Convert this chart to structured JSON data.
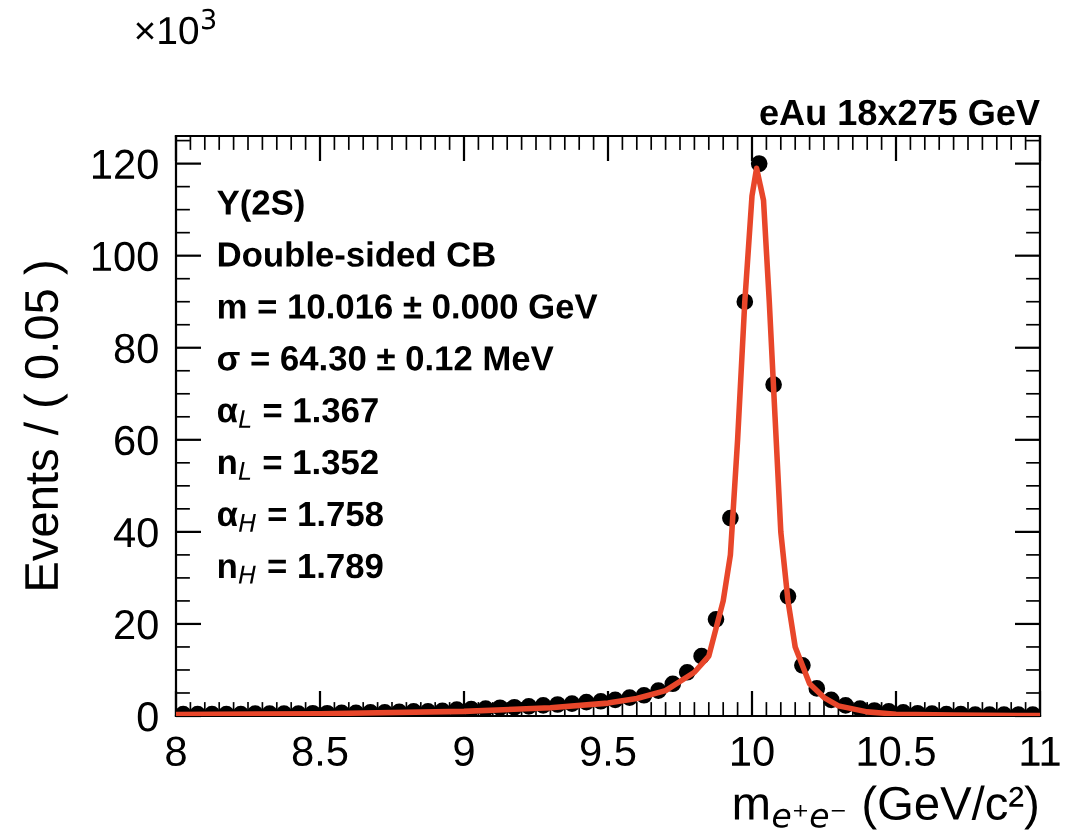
{
  "chart_data": {
    "type": "scatter",
    "title": "eAu 18x275 GeV",
    "xlabel": "m$_{e⁺e⁻}$ (GeV/c²)",
    "ylabel": "Events / ( 0.05 )",
    "annotations": [
      "×10$^{3}$",
      "Y(2S)",
      "Double-sided CB",
      "m = 10.016 ± 0.000 GeV",
      "σ = 64.30 ± 0.12 MeV",
      "α$_{L}$ = 1.367",
      "n$_{L}$ = 1.352",
      "α$_{H}$ = 1.758",
      "n$_{H}$ = 1.789"
    ],
    "xlim": [
      8,
      11
    ],
    "xticks": [
      8,
      8.5,
      9,
      9.5,
      10,
      10.5,
      11
    ],
    "ylim": [
      0,
      126
    ],
    "yticks": [
      0,
      20,
      40,
      60,
      80,
      100,
      120
    ],
    "grid": false,
    "legend": false,
    "series": [
      {
        "marker": "circle",
        "color": "#000000",
        "x": [
          8.025,
          8.075,
          8.125,
          8.175,
          8.225,
          8.275,
          8.325,
          8.375,
          8.425,
          8.475,
          8.525,
          8.575,
          8.625,
          8.675,
          8.725,
          8.775,
          8.825,
          8.875,
          8.925,
          8.975,
          9.025,
          9.075,
          9.125,
          9.175,
          9.225,
          9.275,
          9.325,
          9.375,
          9.425,
          9.475,
          9.525,
          9.575,
          9.625,
          9.675,
          9.725,
          9.775,
          9.825,
          9.875,
          9.925,
          9.975,
          10.025,
          10.075,
          10.125,
          10.175,
          10.225,
          10.275,
          10.325,
          10.375,
          10.425,
          10.475,
          10.525,
          10.575,
          10.625,
          10.675,
          10.725,
          10.775,
          10.825,
          10.875,
          10.925,
          10.975
        ],
        "values": [
          0.4,
          0.4,
          0.4,
          0.4,
          0.4,
          0.5,
          0.5,
          0.5,
          0.5,
          0.6,
          0.6,
          0.7,
          0.7,
          0.8,
          0.8,
          0.9,
          1.0,
          1.0,
          1.1,
          1.4,
          1.5,
          1.6,
          1.8,
          1.9,
          2.1,
          2.3,
          2.5,
          2.7,
          3.0,
          3.2,
          3.5,
          4.0,
          4.5,
          5.5,
          7.0,
          9.5,
          13,
          21,
          43,
          90,
          120,
          72,
          26,
          11,
          6,
          3.5,
          2.3,
          1.6,
          1.2,
          1.0,
          0.8,
          0.6,
          0.5,
          0.4,
          0.4,
          0.3,
          0.3,
          0.3,
          0.3,
          0.3
        ]
      },
      {
        "type": "line",
        "line_style": "solid",
        "color": "#e8462a",
        "x": [
          8,
          8.5,
          9,
          9.3,
          9.5,
          9.6,
          9.7,
          9.8,
          9.85,
          9.9,
          9.925,
          9.95,
          9.975,
          10,
          10.016,
          10.04,
          10.06,
          10.08,
          10.1,
          10.125,
          10.15,
          10.2,
          10.25,
          10.3,
          10.4,
          10.5,
          10.7,
          11
        ],
        "values": [
          0.3,
          0.5,
          1.0,
          1.8,
          2.8,
          3.8,
          5.5,
          9.5,
          13,
          25,
          35,
          60,
          90,
          113,
          119,
          112,
          90,
          65,
          40,
          25,
          15,
          7,
          4,
          2.2,
          0.9,
          0.4,
          0.2,
          0.1
        ]
      }
    ]
  }
}
